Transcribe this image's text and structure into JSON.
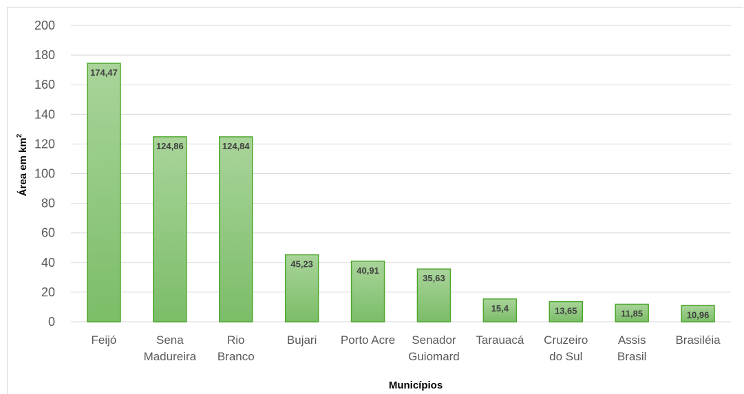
{
  "chart_data": {
    "type": "bar",
    "categories": [
      [
        "Feijó"
      ],
      [
        "Sena",
        "Madureira"
      ],
      [
        "Rio",
        "Branco"
      ],
      [
        "Bujari"
      ],
      [
        "Porto Acre"
      ],
      [
        "Senador",
        "Guiomard"
      ],
      [
        "Tarauacá"
      ],
      [
        "Cruzeiro",
        "do Sul"
      ],
      [
        "Assis",
        "Brasil"
      ],
      [
        "Brasiléia"
      ]
    ],
    "values": [
      174.47,
      124.86,
      124.84,
      45.23,
      40.91,
      35.63,
      15.4,
      13.65,
      11.85,
      10.96
    ],
    "data_labels": [
      "174,47",
      "124,86",
      "124,84",
      "45,23",
      "40,91",
      "35,63",
      "15,4",
      "13,65",
      "11,85",
      "10,96"
    ],
    "xlabel": "Municípios",
    "ylabel": "Área em km",
    "ylabel_superscript": "2",
    "ylim": [
      0,
      200
    ],
    "yticks": [
      0,
      20,
      40,
      60,
      80,
      100,
      120,
      140,
      160,
      180,
      200
    ],
    "grid": true,
    "colors": {
      "bar_top": "#a9d49a",
      "bar_bottom": "#7bbd68",
      "bar_border": "#4ea72e",
      "grid": "#d9d9d9"
    }
  }
}
